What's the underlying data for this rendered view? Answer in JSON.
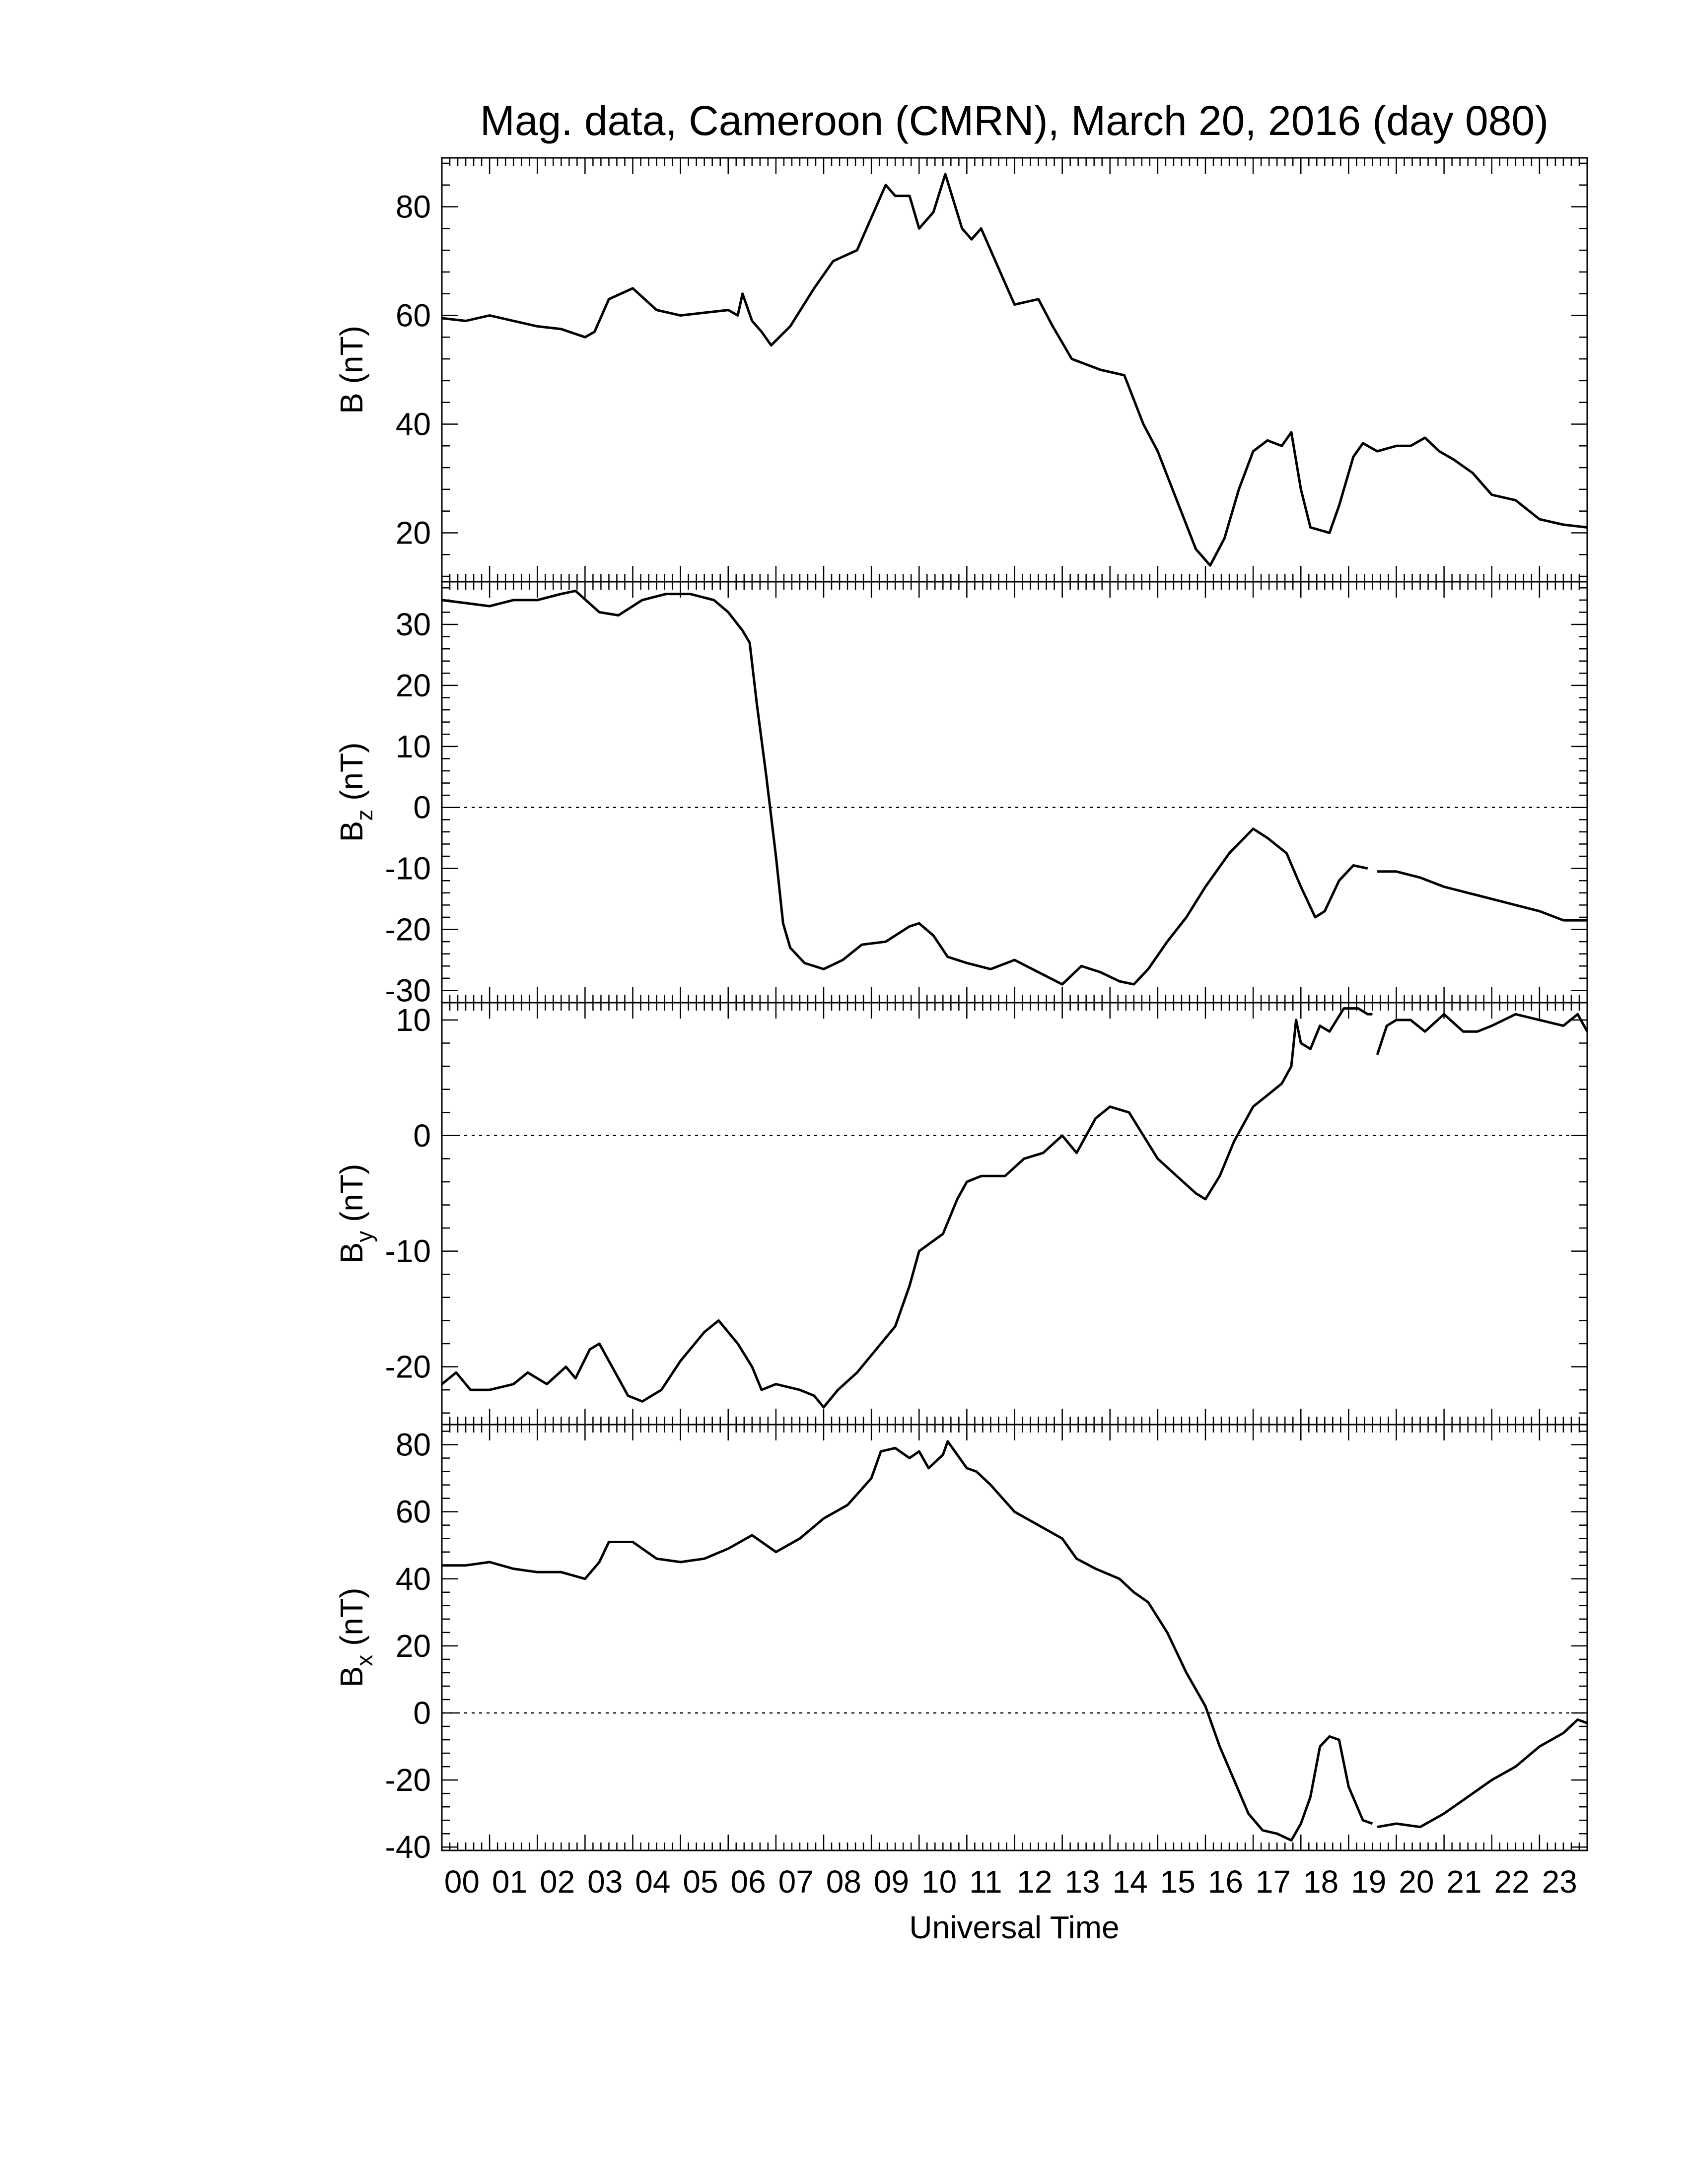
{
  "chart_data": {
    "type": "line",
    "title": "Mag. data, Cameroon (CMRN), March 20, 2016 (day 080)",
    "xlabel": "Universal Time",
    "xlim": [
      0,
      24
    ],
    "x_tick_labels": [
      "00",
      "01",
      "02",
      "03",
      "04",
      "05",
      "06",
      "07",
      "08",
      "09",
      "10",
      "11",
      "12",
      "13",
      "14",
      "15",
      "16",
      "17",
      "18",
      "19",
      "20",
      "21",
      "22",
      "23"
    ],
    "grid": false,
    "line_color": "#000000",
    "panels": [
      {
        "id": "B",
        "ylabel_main": "B",
        "ylabel_sub": "",
        "ylabel_unit": " (nT)",
        "ylim": [
          11,
          89
        ],
        "yticks": [
          20,
          40,
          60,
          80
        ],
        "zero_line": false,
        "gaps": [],
        "points": [
          [
            0,
            59.5
          ],
          [
            0.5,
            59
          ],
          [
            1,
            60
          ],
          [
            1.5,
            59
          ],
          [
            2,
            58
          ],
          [
            2.5,
            57.5
          ],
          [
            3,
            56
          ],
          [
            3.2,
            57
          ],
          [
            3.5,
            63
          ],
          [
            4,
            65
          ],
          [
            4.5,
            61
          ],
          [
            5,
            60
          ],
          [
            5.5,
            60.5
          ],
          [
            6,
            61
          ],
          [
            6.2,
            60
          ],
          [
            6.3,
            64
          ],
          [
            6.5,
            59
          ],
          [
            6.7,
            57
          ],
          [
            6.9,
            54.5
          ],
          [
            7.3,
            58
          ],
          [
            7.8,
            65
          ],
          [
            8.2,
            70
          ],
          [
            8.7,
            72
          ],
          [
            9.0,
            78
          ],
          [
            9.3,
            84
          ],
          [
            9.5,
            82
          ],
          [
            9.8,
            82
          ],
          [
            10.0,
            76
          ],
          [
            10.3,
            79
          ],
          [
            10.55,
            86
          ],
          [
            10.9,
            76
          ],
          [
            11.1,
            74
          ],
          [
            11.3,
            76
          ],
          [
            11.6,
            70
          ],
          [
            12.0,
            62
          ],
          [
            12.5,
            63
          ],
          [
            12.8,
            58
          ],
          [
            13.2,
            52
          ],
          [
            13.8,
            50
          ],
          [
            14.3,
            49
          ],
          [
            14.7,
            40
          ],
          [
            15.0,
            35
          ],
          [
            15.4,
            26
          ],
          [
            15.8,
            17
          ],
          [
            16.1,
            14
          ],
          [
            16.4,
            19
          ],
          [
            16.7,
            28
          ],
          [
            17.0,
            35
          ],
          [
            17.3,
            37
          ],
          [
            17.6,
            36
          ],
          [
            17.8,
            38.5
          ],
          [
            18.0,
            28
          ],
          [
            18.2,
            21
          ],
          [
            18.6,
            20
          ],
          [
            18.8,
            25
          ],
          [
            19.1,
            34
          ],
          [
            19.3,
            36.5
          ],
          [
            19.6,
            35
          ],
          [
            20.0,
            36
          ],
          [
            20.3,
            36
          ],
          [
            20.6,
            37.5
          ],
          [
            20.9,
            35
          ],
          [
            21.2,
            33.5
          ],
          [
            21.6,
            31
          ],
          [
            22.0,
            27
          ],
          [
            22.5,
            26
          ],
          [
            23.0,
            22.5
          ],
          [
            23.5,
            21.5
          ],
          [
            24.0,
            21
          ]
        ]
      },
      {
        "id": "Bz",
        "ylabel_main": "B",
        "ylabel_sub": "z",
        "ylabel_unit": " (nT)",
        "ylim": [
          -32,
          37
        ],
        "yticks": [
          -30,
          -20,
          -10,
          0,
          10,
          20,
          30
        ],
        "zero_line": true,
        "gaps": [
          19.6
        ],
        "points": [
          [
            0,
            34
          ],
          [
            0.5,
            33.5
          ],
          [
            1,
            33
          ],
          [
            1.5,
            34
          ],
          [
            2,
            34
          ],
          [
            2.5,
            35
          ],
          [
            2.8,
            35.5
          ],
          [
            3.3,
            32
          ],
          [
            3.7,
            31.5
          ],
          [
            4.2,
            34
          ],
          [
            4.7,
            35
          ],
          [
            5.2,
            35
          ],
          [
            5.7,
            34
          ],
          [
            6.0,
            32
          ],
          [
            6.3,
            29
          ],
          [
            6.45,
            27
          ],
          [
            6.6,
            17
          ],
          [
            6.8,
            5
          ],
          [
            7.0,
            -8
          ],
          [
            7.15,
            -19
          ],
          [
            7.3,
            -23
          ],
          [
            7.6,
            -25.5
          ],
          [
            8.0,
            -26.5
          ],
          [
            8.4,
            -25
          ],
          [
            8.8,
            -22.5
          ],
          [
            9.3,
            -22
          ],
          [
            9.8,
            -19.5
          ],
          [
            10.0,
            -19
          ],
          [
            10.3,
            -21
          ],
          [
            10.6,
            -24.5
          ],
          [
            11.0,
            -25.5
          ],
          [
            11.5,
            -26.5
          ],
          [
            12.0,
            -25
          ],
          [
            12.5,
            -27
          ],
          [
            13.0,
            -29
          ],
          [
            13.4,
            -26
          ],
          [
            13.8,
            -27
          ],
          [
            14.2,
            -28.5
          ],
          [
            14.5,
            -29
          ],
          [
            14.8,
            -26.5
          ],
          [
            15.2,
            -22
          ],
          [
            15.6,
            -18
          ],
          [
            16.0,
            -13
          ],
          [
            16.5,
            -7.5
          ],
          [
            17.0,
            -3.5
          ],
          [
            17.3,
            -5
          ],
          [
            17.7,
            -7.5
          ],
          [
            18.0,
            -13
          ],
          [
            18.3,
            -18
          ],
          [
            18.5,
            -17
          ],
          [
            18.8,
            -12
          ],
          [
            19.1,
            -9.5
          ],
          [
            19.4,
            -10
          ],
          [
            19.6,
            -10.5
          ],
          [
            20.0,
            -10.5
          ],
          [
            20.5,
            -11.5
          ],
          [
            21.0,
            -13
          ],
          [
            21.5,
            -14
          ],
          [
            22.0,
            -15
          ],
          [
            22.5,
            -16
          ],
          [
            23.0,
            -17
          ],
          [
            23.5,
            -18.5
          ],
          [
            24.0,
            -18.5
          ]
        ]
      },
      {
        "id": "By",
        "ylabel_main": "B",
        "ylabel_sub": "y",
        "ylabel_unit": " (nT)",
        "ylim": [
          -25,
          11.5
        ],
        "yticks": [
          -20,
          -10,
          0,
          10
        ],
        "zero_line": true,
        "gaps": [
          19.6
        ],
        "points": [
          [
            0,
            -21.5
          ],
          [
            0.3,
            -20.5
          ],
          [
            0.6,
            -22
          ],
          [
            1,
            -22
          ],
          [
            1.5,
            -21.5
          ],
          [
            1.8,
            -20.5
          ],
          [
            2.2,
            -21.5
          ],
          [
            2.6,
            -20
          ],
          [
            2.8,
            -21
          ],
          [
            3.1,
            -18.5
          ],
          [
            3.3,
            -18
          ],
          [
            3.7,
            -21
          ],
          [
            3.9,
            -22.5
          ],
          [
            4.2,
            -23
          ],
          [
            4.6,
            -22
          ],
          [
            5.0,
            -19.5
          ],
          [
            5.5,
            -17
          ],
          [
            5.8,
            -16
          ],
          [
            6.2,
            -18
          ],
          [
            6.5,
            -20
          ],
          [
            6.7,
            -22
          ],
          [
            7.0,
            -21.5
          ],
          [
            7.5,
            -22
          ],
          [
            7.8,
            -22.5
          ],
          [
            8.0,
            -23.5
          ],
          [
            8.3,
            -22
          ],
          [
            8.7,
            -20.5
          ],
          [
            9.0,
            -19
          ],
          [
            9.5,
            -16.5
          ],
          [
            9.8,
            -13
          ],
          [
            10.0,
            -10
          ],
          [
            10.5,
            -8.5
          ],
          [
            10.8,
            -5.5
          ],
          [
            11.0,
            -4
          ],
          [
            11.3,
            -3.5
          ],
          [
            11.8,
            -3.5
          ],
          [
            12.2,
            -2
          ],
          [
            12.6,
            -1.5
          ],
          [
            13.0,
            0
          ],
          [
            13.3,
            -1.5
          ],
          [
            13.7,
            1.5
          ],
          [
            14.0,
            2.5
          ],
          [
            14.4,
            2
          ],
          [
            14.7,
            0
          ],
          [
            15.0,
            -2
          ],
          [
            15.4,
            -3.5
          ],
          [
            15.8,
            -5
          ],
          [
            16.0,
            -5.5
          ],
          [
            16.3,
            -3.5
          ],
          [
            16.6,
            -0.5
          ],
          [
            17.0,
            2.5
          ],
          [
            17.3,
            3.5
          ],
          [
            17.6,
            4.5
          ],
          [
            17.8,
            6
          ],
          [
            17.9,
            10
          ],
          [
            18.0,
            8
          ],
          [
            18.2,
            7.5
          ],
          [
            18.4,
            9.5
          ],
          [
            18.6,
            9
          ],
          [
            18.9,
            11
          ],
          [
            19.2,
            11
          ],
          [
            19.4,
            10.5
          ],
          [
            19.5,
            10.5
          ],
          [
            19.6,
            7
          ],
          [
            19.8,
            9.5
          ],
          [
            20.0,
            10
          ],
          [
            20.3,
            10
          ],
          [
            20.6,
            9
          ],
          [
            21.0,
            10.5
          ],
          [
            21.4,
            9
          ],
          [
            21.7,
            9
          ],
          [
            22.0,
            9.5
          ],
          [
            22.5,
            10.5
          ],
          [
            23.0,
            10
          ],
          [
            23.5,
            9.5
          ],
          [
            23.8,
            10.5
          ],
          [
            24.0,
            9
          ]
        ]
      },
      {
        "id": "Bx",
        "ylabel_main": "B",
        "ylabel_sub": "x",
        "ylabel_unit": " (nT)",
        "ylim": [
          -41,
          86
        ],
        "yticks": [
          -40,
          -20,
          0,
          20,
          40,
          60,
          80
        ],
        "zero_line": true,
        "gaps": [
          19.6
        ],
        "points": [
          [
            0,
            44
          ],
          [
            0.5,
            44
          ],
          [
            1,
            45
          ],
          [
            1.5,
            43
          ],
          [
            2,
            42
          ],
          [
            2.5,
            42
          ],
          [
            3,
            40
          ],
          [
            3.3,
            45
          ],
          [
            3.5,
            51
          ],
          [
            4,
            51
          ],
          [
            4.5,
            46
          ],
          [
            5,
            45
          ],
          [
            5.5,
            46
          ],
          [
            6,
            49
          ],
          [
            6.5,
            53
          ],
          [
            7,
            48
          ],
          [
            7.5,
            52
          ],
          [
            8,
            58
          ],
          [
            8.5,
            62
          ],
          [
            9.0,
            70
          ],
          [
            9.2,
            78
          ],
          [
            9.5,
            79
          ],
          [
            9.8,
            76
          ],
          [
            10.0,
            78
          ],
          [
            10.2,
            73
          ],
          [
            10.5,
            77
          ],
          [
            10.6,
            81
          ],
          [
            11.0,
            73
          ],
          [
            11.2,
            72
          ],
          [
            11.5,
            68
          ],
          [
            12.0,
            60
          ],
          [
            12.5,
            56
          ],
          [
            13.0,
            52
          ],
          [
            13.3,
            46
          ],
          [
            13.7,
            43
          ],
          [
            14.2,
            40
          ],
          [
            14.5,
            36
          ],
          [
            14.8,
            33
          ],
          [
            15.2,
            24
          ],
          [
            15.6,
            12
          ],
          [
            16.0,
            2
          ],
          [
            16.3,
            -10
          ],
          [
            16.6,
            -20
          ],
          [
            16.9,
            -30
          ],
          [
            17.2,
            -35
          ],
          [
            17.5,
            -36
          ],
          [
            17.8,
            -38
          ],
          [
            18.0,
            -33
          ],
          [
            18.2,
            -25
          ],
          [
            18.4,
            -10
          ],
          [
            18.6,
            -7
          ],
          [
            18.8,
            -8
          ],
          [
            19.0,
            -22
          ],
          [
            19.3,
            -32
          ],
          [
            19.5,
            -33
          ],
          [
            19.6,
            -34
          ],
          [
            20.0,
            -33
          ],
          [
            20.5,
            -34
          ],
          [
            21.0,
            -30
          ],
          [
            21.5,
            -25
          ],
          [
            22.0,
            -20
          ],
          [
            22.5,
            -16
          ],
          [
            23.0,
            -10
          ],
          [
            23.5,
            -6
          ],
          [
            23.8,
            -2
          ],
          [
            24.0,
            -3
          ]
        ]
      }
    ]
  }
}
